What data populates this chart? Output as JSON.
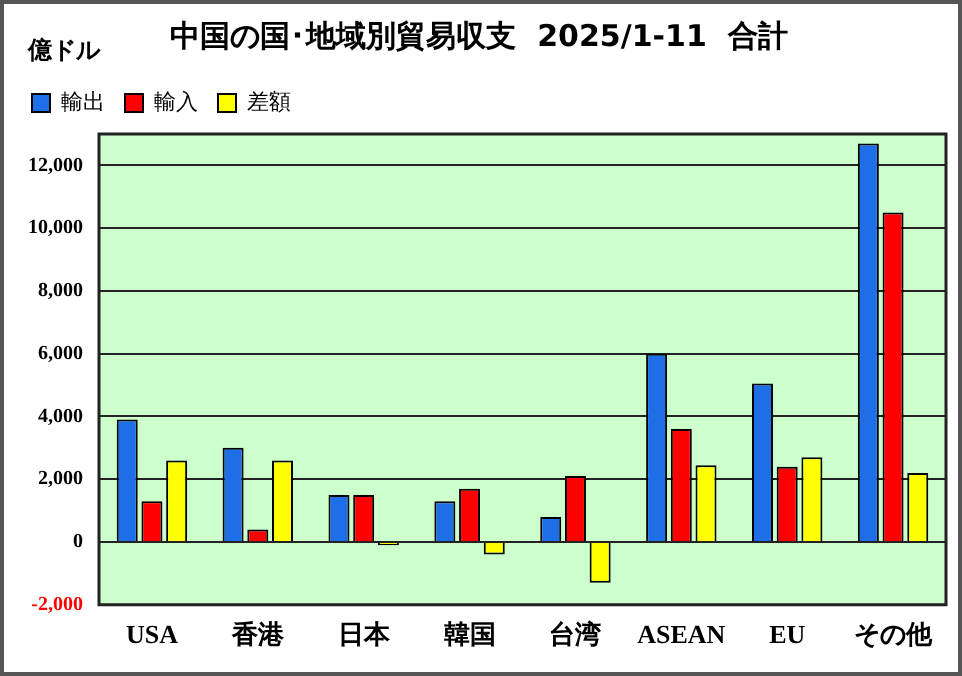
{
  "chart_data": {
    "type": "bar",
    "title": "中国の国･地域別貿易収支  2025/1-11  合計",
    "ylabel": "億ドル",
    "categories": [
      "USA",
      "香港",
      "日本",
      "韓国",
      "台湾",
      "ASEAN",
      "EU",
      "その他"
    ],
    "series": [
      {
        "name": "輸出",
        "color": "#1e6ee8",
        "values": [
          3900,
          3000,
          1500,
          1300,
          800,
          6000,
          5050,
          12700
        ]
      },
      {
        "name": "輸入",
        "color": "#ff0000",
        "values": [
          1300,
          400,
          1500,
          1700,
          2100,
          3600,
          2400,
          10500
        ]
      },
      {
        "name": "差額",
        "color": "#ffff00",
        "values": [
          2600,
          2600,
          -100,
          -400,
          -1300,
          2450,
          2700,
          2200
        ]
      }
    ],
    "ylim": [
      -2000,
      13000
    ],
    "yticks": [
      {
        "value": -2000,
        "label": "-2,000"
      },
      {
        "value": 0,
        "label": "0"
      },
      {
        "value": 2000,
        "label": "2,000"
      },
      {
        "value": 4000,
        "label": "4,000"
      },
      {
        "value": 6000,
        "label": "6,000"
      },
      {
        "value": 8000,
        "label": "8,000"
      },
      {
        "value": 10000,
        "label": "10,000"
      },
      {
        "value": 12000,
        "label": "12,000"
      }
    ],
    "grid": "y",
    "legend": "top left"
  }
}
